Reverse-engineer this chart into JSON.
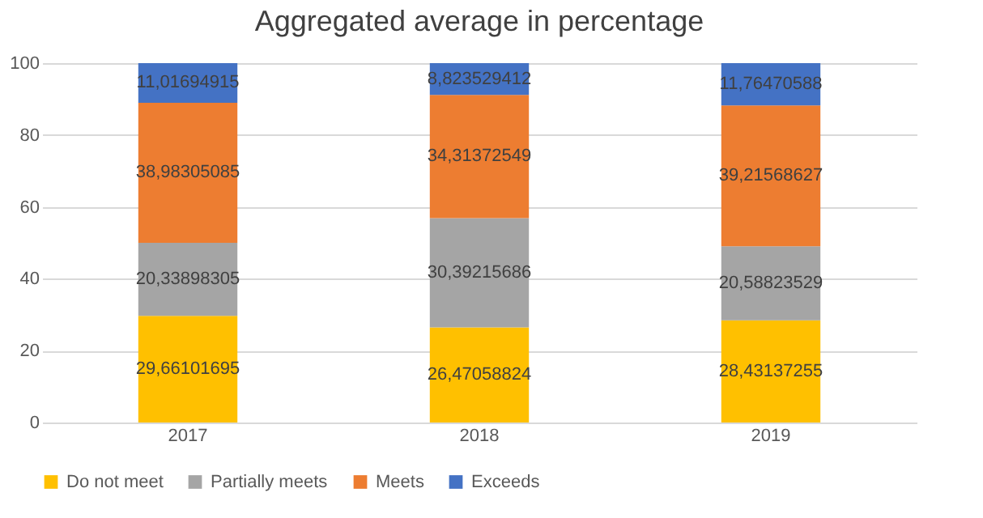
{
  "chart_data": {
    "type": "bar",
    "title": "Aggregated average in percentage",
    "categories": [
      "2017",
      "2018",
      "2019"
    ],
    "stacked": true,
    "ylim": [
      0,
      100
    ],
    "yticks": [
      0,
      20,
      40,
      60,
      80,
      100
    ],
    "grid": "y",
    "legend": "bottom",
    "series": [
      {
        "name": "Do not meet",
        "color": "#ffc000",
        "values": [
          29.66101695,
          26.47058824,
          28.43137255
        ],
        "value_labels": [
          "29,66101695",
          "26,47058824",
          "28,43137255"
        ]
      },
      {
        "name": "Partially meets",
        "color": "#a5a5a5",
        "values": [
          20.33898305,
          30.39215686,
          20.58823529
        ],
        "value_labels": [
          "20,33898305",
          "30,39215686",
          "20,58823529"
        ]
      },
      {
        "name": "Meets",
        "color": "#ed7d31",
        "values": [
          38.98305085,
          34.31372549,
          39.21568627
        ],
        "value_labels": [
          "38,98305085",
          "34,31372549",
          "39,21568627"
        ]
      },
      {
        "name": "Exceeds",
        "color": "#4472c4",
        "values": [
          11.01694915,
          8.823529412,
          11.76470588
        ],
        "value_labels": [
          "11,01694915",
          "8,823529412",
          "11,76470588"
        ]
      }
    ]
  }
}
